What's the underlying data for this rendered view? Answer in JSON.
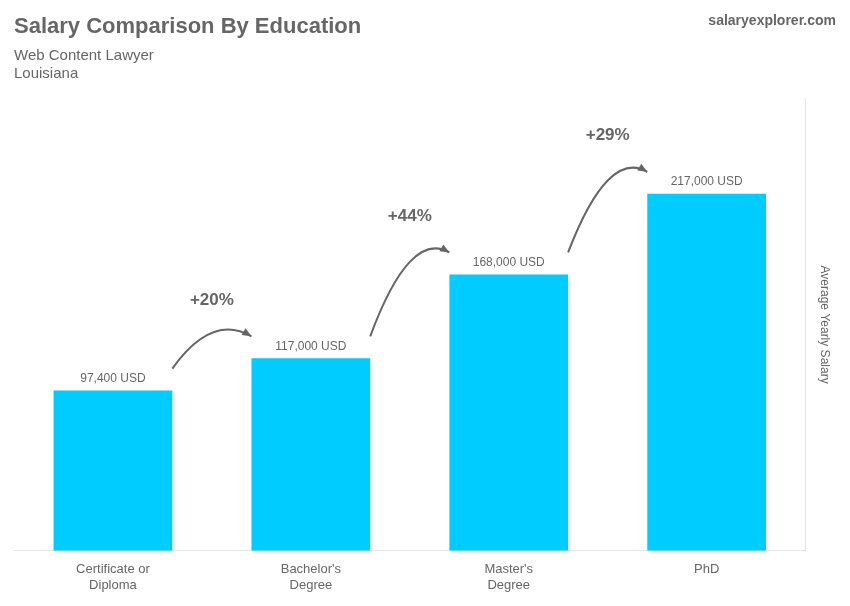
{
  "chart_data": {
    "type": "bar",
    "title": "Salary Comparison By Education",
    "subtitle": [
      "Web Content Lawyer",
      "Louisiana"
    ],
    "watermark": [
      "salary",
      "explorer",
      ".com"
    ],
    "ylabel": "Average Yearly Salary",
    "categories": [
      "Certificate or\nDiploma",
      "Bachelor's\nDegree",
      "Master's\nDegree",
      "PhD"
    ],
    "values": [
      97400,
      117000,
      168000,
      217000
    ],
    "value_labels": [
      "97,400 USD",
      "117,000 USD",
      "168,000 USD",
      "217,000 USD"
    ],
    "annotations": [
      "+20%",
      "+44%",
      "+29%"
    ],
    "color": "#00ccff",
    "ylim": [
      0,
      275000
    ],
    "grid": false,
    "tick_labels": "x",
    "data_labels": true
  }
}
